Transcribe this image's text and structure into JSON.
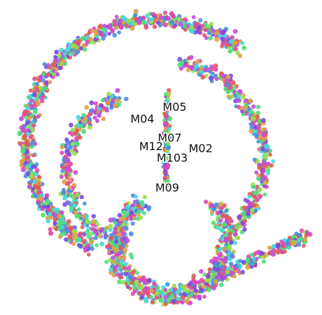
{
  "chart_data": {
    "type": "scatter",
    "title": "",
    "xlabel": "",
    "ylabel": "",
    "axes_visible": false,
    "grid": false,
    "legend": "none",
    "palette": [
      "#e05a5a",
      "#e0a04a",
      "#9be04a",
      "#4ae07a",
      "#4ad8d8",
      "#4a8ee0",
      "#7a4ae0",
      "#c84ad8",
      "#e04aa8"
    ],
    "structures": [
      {
        "shape": "outer-arc",
        "cx": 0.0,
        "cy": 0.0,
        "r_start": 5.4,
        "r_end": 4.9,
        "angle_start_deg": 50,
        "angle_end_deg": 240,
        "point_count": 900
      },
      {
        "shape": "right-band",
        "cx": 0.3,
        "cy": -0.6,
        "r_start": 4.2,
        "r_end": 4.2,
        "angle_start_deg": -45,
        "angle_end_deg": 80,
        "point_count": 380
      },
      {
        "shape": "inner-arc",
        "cx": -0.2,
        "cy": -0.9,
        "r_start": 3.1,
        "r_end": 3.4,
        "angle_start_deg": 110,
        "angle_end_deg": 255,
        "point_count": 300
      },
      {
        "shape": "lower-swirl",
        "cx": 0.6,
        "cy": -4.1,
        "r_start": 1.9,
        "r_end": 2.5,
        "angle_start_deg": 120,
        "angle_end_deg": 400,
        "point_count": 720
      },
      {
        "shape": "tail",
        "x_from": 2.5,
        "y_from": -5.6,
        "x_to": 6.2,
        "y_to": -3.8,
        "point_count": 200
      },
      {
        "shape": "center-stem",
        "x_from": 0.6,
        "y_from": 2.2,
        "x_to": 0.55,
        "y_to": -1.6,
        "point_count": 140
      }
    ],
    "annotations": [
      {
        "text": "M05",
        "x": 0.9,
        "y": 1.6
      },
      {
        "text": "M04",
        "x": -0.4,
        "y": 1.1
      },
      {
        "text": "M07",
        "x": 0.7,
        "y": 0.3
      },
      {
        "text": "M12",
        "x": -0.05,
        "y": -0.05
      },
      {
        "text": "M02",
        "x": 1.95,
        "y": -0.15
      },
      {
        "text": "M103",
        "x": 0.8,
        "y": -0.55
      },
      {
        "text": "M09",
        "x": 0.6,
        "y": -1.8
      }
    ],
    "xlim": [
      -5.8,
      6.5
    ],
    "ylim": [
      -6.8,
      5.8
    ]
  }
}
